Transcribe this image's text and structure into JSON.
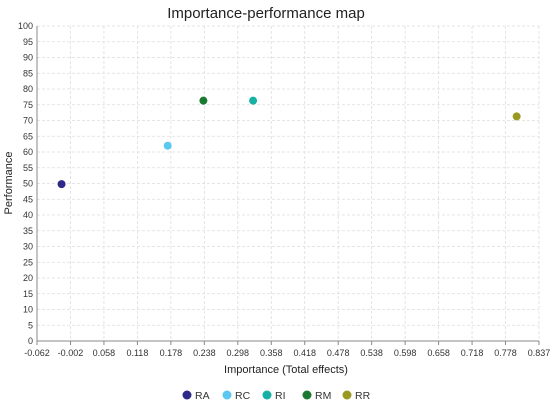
{
  "chart_data": {
    "type": "scatter",
    "title": "Importance-performance map",
    "xlabel": "Importance (Total effects)",
    "ylabel": "Performance",
    "xlim": [
      -0.062,
      0.837
    ],
    "ylim": [
      0,
      100
    ],
    "x_ticks": [
      "-0.062",
      "-0.002",
      "0.058",
      "0.118",
      "0.178",
      "0.238",
      "0.298",
      "0.358",
      "0.418",
      "0.478",
      "0.538",
      "0.598",
      "0.658",
      "0.718",
      "0.778",
      "0.837"
    ],
    "y_ticks": [
      0,
      5,
      10,
      15,
      20,
      25,
      30,
      35,
      40,
      45,
      50,
      55,
      60,
      65,
      70,
      75,
      80,
      85,
      90,
      95,
      100
    ],
    "grid": true,
    "legend_position": "bottom",
    "series": [
      {
        "name": "RA",
        "color": "#2E2A8A",
        "x": [
          -0.018
        ],
        "y": [
          49.8
        ]
      },
      {
        "name": "RC",
        "color": "#5BC8F0",
        "x": [
          0.172
        ],
        "y": [
          62.0
        ]
      },
      {
        "name": "RI",
        "color": "#17B0A4",
        "x": [
          0.325
        ],
        "y": [
          76.3
        ]
      },
      {
        "name": "RM",
        "color": "#1B7A32",
        "x": [
          0.236
        ],
        "y": [
          76.3
        ]
      },
      {
        "name": "RR",
        "color": "#9A9A22",
        "x": [
          0.797
        ],
        "y": [
          71.3
        ]
      }
    ]
  }
}
